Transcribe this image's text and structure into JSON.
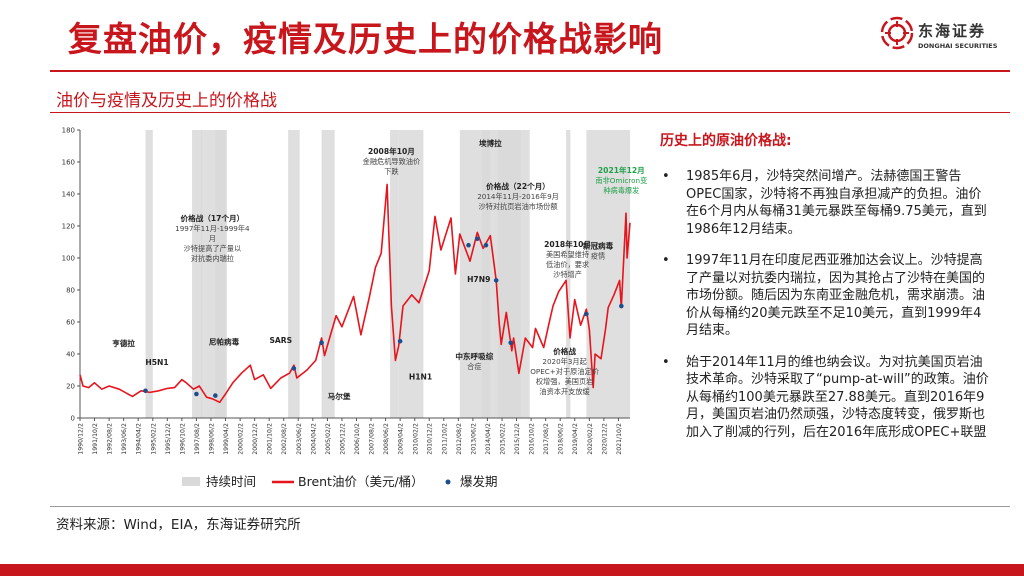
{
  "header": {
    "title": "复盘油价，疫情及历史上的价格战影响",
    "logo_name": "东海证券",
    "logo_en": "DONGHAI SECURITIES"
  },
  "subtitle": "油价与疫情及历史上的价格战",
  "legend": {
    "span": "持续时间",
    "line": "Brent油价（美元/桶）",
    "dot": "爆发期"
  },
  "right": {
    "title": "历史上的原油价格战:",
    "bullets": [
      "1985年6月，沙特突然间增产。法赫德国王警告OPEC国家，沙特将不再独自承担减产的负担。油价在6个月内从每桶31美元暴跌至每桶9.75美元，直到1986年12月结束。",
      "1997年11月在印度尼西亚雅加达会议上。沙特提高了产量以对抗委内瑞拉，因为其抢占了沙特在美国的市场份额。随后因为东南亚金融危机，需求崩溃。油价从每桶约20美元跌至不足10美元，直到1999年4月结束。",
      "始于2014年11月的维也纳会议。为对抗美国页岩油技术革命。沙特采取了“pump-at-will”的政策。油价从每桶约100美元暴跌至27.88美元。直到2016年9月，美国页岩油仍然顽强，沙特态度转变，俄罗斯也加入了削减的行列，后在2016年底形成OPEC+联盟"
    ]
  },
  "source": "资料来源：Wind，EIA，东海证券研究所",
  "colors": {
    "brand": "#c8161d",
    "line": "#e8141c",
    "span": "#d9d9d9",
    "dot": "#1f4e8c",
    "green": "#1fa04a"
  },
  "chart_data": {
    "type": "line",
    "ylim": [
      0,
      180
    ],
    "yticks": [
      0,
      20,
      40,
      60,
      80,
      100,
      120,
      140,
      160,
      180
    ],
    "x_range": [
      "1990-12-01",
      "2022-05-31"
    ],
    "xticks": [
      "1990/12/2",
      "1991/10/2",
      "1992/08/2",
      "1993/06/2",
      "1994/04/2",
      "1995/02/2",
      "1995/12/2",
      "1996/10/2",
      "1997/08/2",
      "1998/06/2",
      "1999/04/2",
      "2000/02/2",
      "2000/12/2",
      "2001/10/2",
      "2002/08/2",
      "2003/06/2",
      "2004/04/2",
      "2005/02/2",
      "2005/12/2",
      "2006/10/2",
      "2007/08/2",
      "2008/06/2",
      "2009/04/2",
      "2010/02/2",
      "2010/12/2",
      "2011/10/2",
      "2012/08/2",
      "2013/06/2",
      "2014/04/2",
      "2015/02/2",
      "2015/12/2",
      "2016/10/2",
      "2017/08/2",
      "2018/06/2",
      "2019/04/2",
      "2020/02/2",
      "2020/12/2",
      "2021/10/2"
    ],
    "series": [
      {
        "name": "Brent油价（美元/桶）",
        "points": [
          [
            "1990-12-01",
            27
          ],
          [
            "1991-02-01",
            20
          ],
          [
            "1991-06-01",
            19
          ],
          [
            "1991-10-01",
            22
          ],
          [
            "1992-03-01",
            18
          ],
          [
            "1992-08-01",
            20
          ],
          [
            "1993-03-01",
            18
          ],
          [
            "1993-12-01",
            13.5
          ],
          [
            "1994-06-01",
            17
          ],
          [
            "1994-12-01",
            16
          ],
          [
            "1995-06-01",
            17
          ],
          [
            "1995-12-01",
            18.5
          ],
          [
            "1996-05-01",
            19
          ],
          [
            "1996-10-01",
            24
          ],
          [
            "1997-01-01",
            22
          ],
          [
            "1997-06-01",
            18
          ],
          [
            "1997-10-01",
            20
          ],
          [
            "1998-03-01",
            13
          ],
          [
            "1998-07-01",
            12
          ],
          [
            "1998-12-01",
            9.8
          ],
          [
            "1999-04-01",
            15
          ],
          [
            "1999-09-01",
            22
          ],
          [
            "2000-03-01",
            28
          ],
          [
            "2000-09-01",
            33
          ],
          [
            "2000-12-01",
            24
          ],
          [
            "2001-06-01",
            27
          ],
          [
            "2001-11-01",
            18.5
          ],
          [
            "2002-06-01",
            25
          ],
          [
            "2002-12-01",
            28
          ],
          [
            "2003-03-01",
            33
          ],
          [
            "2003-05-01",
            25
          ],
          [
            "2003-12-01",
            30
          ],
          [
            "2004-06-01",
            36
          ],
          [
            "2004-10-01",
            50
          ],
          [
            "2004-12-01",
            39
          ],
          [
            "2005-08-01",
            64
          ],
          [
            "2005-12-01",
            57
          ],
          [
            "2006-08-01",
            76
          ],
          [
            "2007-01-01",
            52
          ],
          [
            "2007-07-01",
            76
          ],
          [
            "2007-11-01",
            94
          ],
          [
            "2008-03-01",
            103
          ],
          [
            "2008-07-03",
            146
          ],
          [
            "2008-10-01",
            70
          ],
          [
            "2008-12-24",
            36
          ],
          [
            "2009-03-01",
            45
          ],
          [
            "2009-06-01",
            70
          ],
          [
            "2009-12-01",
            77
          ],
          [
            "2010-05-01",
            72
          ],
          [
            "2010-12-01",
            92
          ],
          [
            "2011-04-01",
            126
          ],
          [
            "2011-08-01",
            105
          ],
          [
            "2012-03-01",
            125
          ],
          [
            "2012-06-01",
            90
          ],
          [
            "2012-09-01",
            115
          ],
          [
            "2013-04-01",
            98
          ],
          [
            "2013-09-01",
            116
          ],
          [
            "2014-01-01",
            106
          ],
          [
            "2014-06-01",
            114
          ],
          [
            "2014-10-01",
            86
          ],
          [
            "2014-12-01",
            60
          ],
          [
            "2015-01-13",
            46
          ],
          [
            "2015-05-01",
            66
          ],
          [
            "2015-08-24",
            42
          ],
          [
            "2015-10-01",
            50
          ],
          [
            "2016-01-20",
            27.88
          ],
          [
            "2016-06-01",
            50
          ],
          [
            "2016-11-01",
            44
          ],
          [
            "2017-01-01",
            56
          ],
          [
            "2017-06-21",
            44
          ],
          [
            "2017-10-01",
            58
          ],
          [
            "2018-01-01",
            70
          ],
          [
            "2018-05-01",
            79
          ],
          [
            "2018-10-03",
            86
          ],
          [
            "2018-12-24",
            50
          ],
          [
            "2019-04-01",
            74
          ],
          [
            "2019-08-01",
            58
          ],
          [
            "2019-12-01",
            68
          ],
          [
            "2020-02-01",
            55
          ],
          [
            "2020-04-21",
            19
          ],
          [
            "2020-06-01",
            40
          ],
          [
            "2020-10-01",
            37
          ],
          [
            "2021-01-01",
            55
          ],
          [
            "2021-03-01",
            69
          ],
          [
            "2021-07-01",
            77
          ],
          [
            "2021-10-25",
            86
          ],
          [
            "2021-12-01",
            69
          ],
          [
            "2022-01-01",
            88
          ],
          [
            "2022-03-08",
            128
          ],
          [
            "2022-04-01",
            100
          ],
          [
            "2022-05-31",
            122
          ]
        ]
      }
    ],
    "duration_spans": [
      {
        "label": "亨德拉",
        "start": "1994-09-01",
        "end": "1995-02-01"
      },
      {
        "label": "H5N1",
        "start": "1997-05-01",
        "end": "1997-12-01"
      },
      {
        "label": "价格战（17个月）",
        "start": "1997-11-01",
        "end": "1999-04-01"
      },
      {
        "label": "尼帕病毒",
        "start": "1998-09-01",
        "end": "1999-05-01"
      },
      {
        "label": "SARS",
        "start": "2002-11-01",
        "end": "2003-07-01"
      },
      {
        "label": "马尔堡",
        "start": "2004-10-01",
        "end": "2005-07-01"
      },
      {
        "label": "2008年10月",
        "start": "2008-09-01",
        "end": "2009-03-01"
      },
      {
        "label": "H1N1",
        "start": "2009-03-01",
        "end": "2010-08-01"
      },
      {
        "label": "埃博拉",
        "start": "2013-12-01",
        "end": "2016-03-01"
      },
      {
        "label": "中东呼吸综合症",
        "start": "2012-09-01",
        "end": "2014-06-01"
      },
      {
        "label": "H7N9",
        "start": "2014-11-01",
        "end": "2016-09-01"
      },
      {
        "label": "2018年10月",
        "start": "2018-10-01",
        "end": "2018-12-31"
      },
      {
        "label": "新冠病毒疫情",
        "start": "2019-12-01",
        "end": "2022-05-31"
      }
    ],
    "outbreak_dots": [
      [
        "1994-09-01",
        17
      ],
      [
        "1997-08-01",
        15
      ],
      [
        "1998-09-01",
        14
      ],
      [
        "2003-03-01",
        31
      ],
      [
        "2004-10-01",
        47
      ],
      [
        "2009-04-01",
        48
      ],
      [
        "2013-03-01",
        108
      ],
      [
        "2013-09-01",
        112
      ],
      [
        "2014-03-01",
        108
      ],
      [
        "2014-10-01",
        86
      ],
      [
        "2015-08-01",
        47
      ],
      [
        "2019-12-01",
        65
      ],
      [
        "2021-12-01",
        70
      ]
    ],
    "annotations": [
      {
        "title": "2008年10月",
        "body": [
          "金融危机导致油价",
          "下跌"
        ],
        "date": "2008-10-01",
        "y": 165,
        "color": "#222"
      },
      {
        "title": "埃博拉",
        "body": [],
        "date": "2014-06-01",
        "y": 170,
        "color": "#222"
      },
      {
        "title": "2021年12月",
        "body": [
          "南非Omicron变",
          "种病毒爆发"
        ],
        "date": "2021-12-01",
        "y": 153,
        "color": "#1fa04a"
      },
      {
        "title": "价格战（22个月）",
        "body": [
          "2014年11月-2016年9月",
          "沙特对抗页岩油市场份额"
        ],
        "date": "2016-01-01",
        "y": 143,
        "color": "#222"
      },
      {
        "title": "价格战（17个月）",
        "body": [
          "1997年11月-1999年4",
          "月",
          "沙特提高了产量以",
          "对抗委内瑞拉"
        ],
        "date": "1998-07-01",
        "y": 123,
        "color": "#222"
      },
      {
        "title": "2018年10月",
        "body": [
          "美国希望维持",
          "低油价，要求",
          "沙特增产"
        ],
        "date": "2018-11-01",
        "y": 107,
        "color": "#222"
      },
      {
        "title": "新冠病毒",
        "body": [
          "疫情"
        ],
        "date": "2020-08-01",
        "y": 106,
        "color": "#222"
      },
      {
        "title": "H7N9",
        "body": [],
        "date": "2013-10-01",
        "y": 85,
        "color": "#222"
      },
      {
        "title": "亨德拉",
        "body": [],
        "date": "1993-06-01",
        "y": 45,
        "color": "#222"
      },
      {
        "title": "H5N1",
        "body": [],
        "date": "1995-05-01",
        "y": 33,
        "color": "#222"
      },
      {
        "title": "尼帕病毒",
        "body": [],
        "date": "1999-03-01",
        "y": 46,
        "color": "#222"
      },
      {
        "title": "SARS",
        "body": [],
        "date": "2002-06-01",
        "y": 47,
        "color": "#222"
      },
      {
        "title": "马尔堡",
        "body": [],
        "date": "2005-10-01",
        "y": 12,
        "color": "#222"
      },
      {
        "title": "H1N1",
        "body": [],
        "date": "2010-06-01",
        "y": 24,
        "color": "#222"
      },
      {
        "title": "中东呼吸综",
        "body": [
          "合症"
        ],
        "date": "2013-07-01",
        "y": 37,
        "color": "#222"
      },
      {
        "title": "价格战",
        "body": [
          "2020年3月起",
          "OPEC+对于原油定价",
          "权增强，美国页岩",
          "油资本开支放缓"
        ],
        "date": "2018-09-01",
        "y": 40,
        "color": "#222"
      }
    ]
  }
}
